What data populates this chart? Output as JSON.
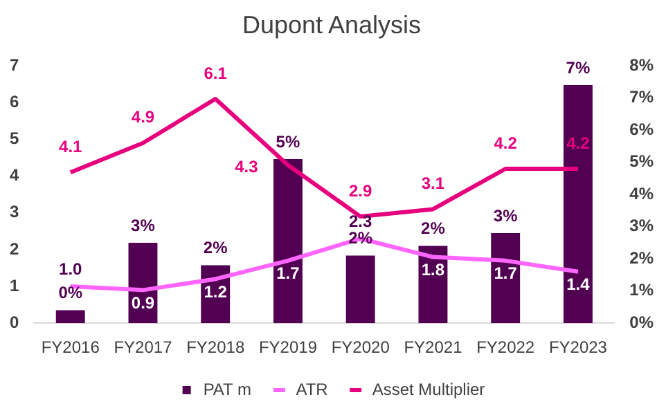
{
  "chart_data": {
    "type": "bar",
    "title": "Dupont Analysis",
    "categories": [
      "FY2016",
      "FY2017",
      "FY2018",
      "FY2019",
      "FY2020",
      "FY2021",
      "FY2022",
      "FY2023"
    ],
    "series": [
      {
        "name": "PAT m",
        "axis": "y2",
        "color": "#520052",
        "values": [
          0.4,
          2.5,
          1.8,
          5.1,
          2.1,
          2.4,
          2.8,
          7.4
        ],
        "value_labels": [
          "0%",
          "3%",
          "2%",
          "5%",
          "2%",
          "2%",
          "3%",
          "7%"
        ]
      },
      {
        "name": "ATR",
        "type": "line",
        "color": "#ff66ff",
        "values": [
          1.0,
          0.9,
          1.2,
          1.7,
          2.3,
          1.8,
          1.7,
          1.4
        ],
        "value_labels": [
          "1.0",
          "0.9",
          "1.2",
          "1.7",
          "2.3",
          "1.8",
          "1.7",
          "1.4"
        ]
      },
      {
        "name": "Asset Multiplier",
        "type": "line",
        "color": "#e6007e",
        "values": [
          4.1,
          4.9,
          6.1,
          4.3,
          2.9,
          3.1,
          4.2,
          4.2
        ],
        "value_labels": [
          "4.1",
          "4.9",
          "6.1",
          "4.3",
          "2.9",
          "3.1",
          "4.2",
          "4.2"
        ]
      }
    ],
    "ylim": [
      0,
      7
    ],
    "yticks": [
      0,
      1,
      2,
      3,
      4,
      5,
      6,
      7
    ],
    "y2lim": [
      0,
      8
    ],
    "y2ticks": [
      {
        "value": 0,
        "label": "0%"
      },
      {
        "value": 1,
        "label": "1%"
      },
      {
        "value": 2,
        "label": "2%"
      },
      {
        "value": 3,
        "label": "3%"
      },
      {
        "value": 4,
        "label": "4%"
      },
      {
        "value": 5,
        "label": "5%"
      },
      {
        "value": 6,
        "label": "6%"
      },
      {
        "value": 7,
        "label": "7%"
      },
      {
        "value": 8,
        "label": "8%"
      }
    ],
    "grid": false,
    "legend": "bottom",
    "marker": "none",
    "line_style": "solid"
  }
}
